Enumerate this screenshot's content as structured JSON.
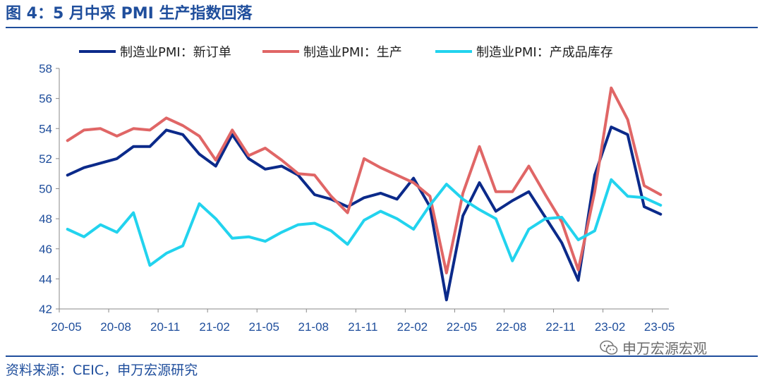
{
  "header": {
    "title": "图 4：5 月中采 PMI 生产指数回落"
  },
  "footer": {
    "source": "资料来源：CEIC，申万宏源研究",
    "watermark": "申万宏源宏观"
  },
  "colors": {
    "accent": "#1F4E9C",
    "series_new_orders": "#0B2A8A",
    "series_production": "#E06666",
    "series_inventory": "#22D3EE"
  },
  "icons": {
    "watermark": "wechat-icon"
  },
  "chart_data": {
    "type": "line",
    "title": "",
    "xlabel": "",
    "ylabel": "",
    "ylim": [
      42,
      58
    ],
    "yticks": [
      42,
      44,
      46,
      48,
      50,
      52,
      54,
      56,
      58
    ],
    "xtick_labels": [
      "20-05",
      "20-08",
      "20-11",
      "21-02",
      "21-05",
      "21-08",
      "21-11",
      "22-02",
      "22-05",
      "22-08",
      "22-11",
      "23-02",
      "23-05"
    ],
    "grid": false,
    "legend_position": "top",
    "x": [
      "20-05",
      "20-06",
      "20-07",
      "20-08",
      "20-09",
      "20-10",
      "20-11",
      "20-12",
      "21-01",
      "21-02",
      "21-03",
      "21-04",
      "21-05",
      "21-06",
      "21-07",
      "21-08",
      "21-09",
      "21-10",
      "21-11",
      "21-12",
      "22-01",
      "22-02",
      "22-03",
      "22-04",
      "22-05",
      "22-06",
      "22-07",
      "22-08",
      "22-09",
      "22-10",
      "22-11",
      "22-12",
      "23-01",
      "23-02",
      "23-03",
      "23-04",
      "23-05"
    ],
    "series": [
      {
        "name": "制造业PMI：新订单",
        "color": "#0B2A8A",
        "values": [
          50.9,
          51.4,
          51.7,
          52.0,
          52.8,
          52.8,
          53.9,
          53.6,
          52.3,
          51.5,
          53.6,
          52.0,
          51.3,
          51.5,
          50.9,
          49.6,
          49.3,
          48.8,
          49.4,
          49.7,
          49.3,
          50.7,
          48.8,
          42.6,
          48.2,
          50.4,
          48.5,
          49.2,
          49.8,
          48.1,
          46.4,
          43.9,
          50.9,
          54.1,
          53.6,
          48.8,
          48.3
        ]
      },
      {
        "name": "制造业PMI：生产",
        "color": "#E06666",
        "values": [
          53.2,
          53.9,
          54.0,
          53.5,
          54.0,
          53.9,
          54.7,
          54.2,
          53.5,
          51.9,
          53.9,
          52.2,
          52.7,
          51.9,
          51.0,
          50.9,
          49.5,
          48.4,
          52.0,
          51.4,
          50.9,
          50.4,
          49.5,
          44.4,
          49.7,
          52.8,
          49.8,
          49.8,
          51.5,
          49.6,
          47.8,
          44.6,
          49.8,
          56.7,
          54.6,
          50.2,
          49.6
        ]
      },
      {
        "name": "制造业PMI：产成品库存",
        "color": "#22D3EE",
        "values": [
          47.3,
          46.8,
          47.6,
          47.1,
          48.4,
          44.9,
          45.7,
          46.2,
          49.0,
          48.0,
          46.7,
          46.8,
          46.5,
          47.1,
          47.6,
          47.7,
          47.2,
          46.3,
          47.9,
          48.5,
          48.0,
          47.3,
          48.9,
          50.3,
          49.3,
          48.6,
          48.0,
          45.2,
          47.3,
          48.0,
          48.1,
          46.6,
          47.2,
          50.6,
          49.5,
          49.4,
          48.9
        ]
      }
    ]
  }
}
